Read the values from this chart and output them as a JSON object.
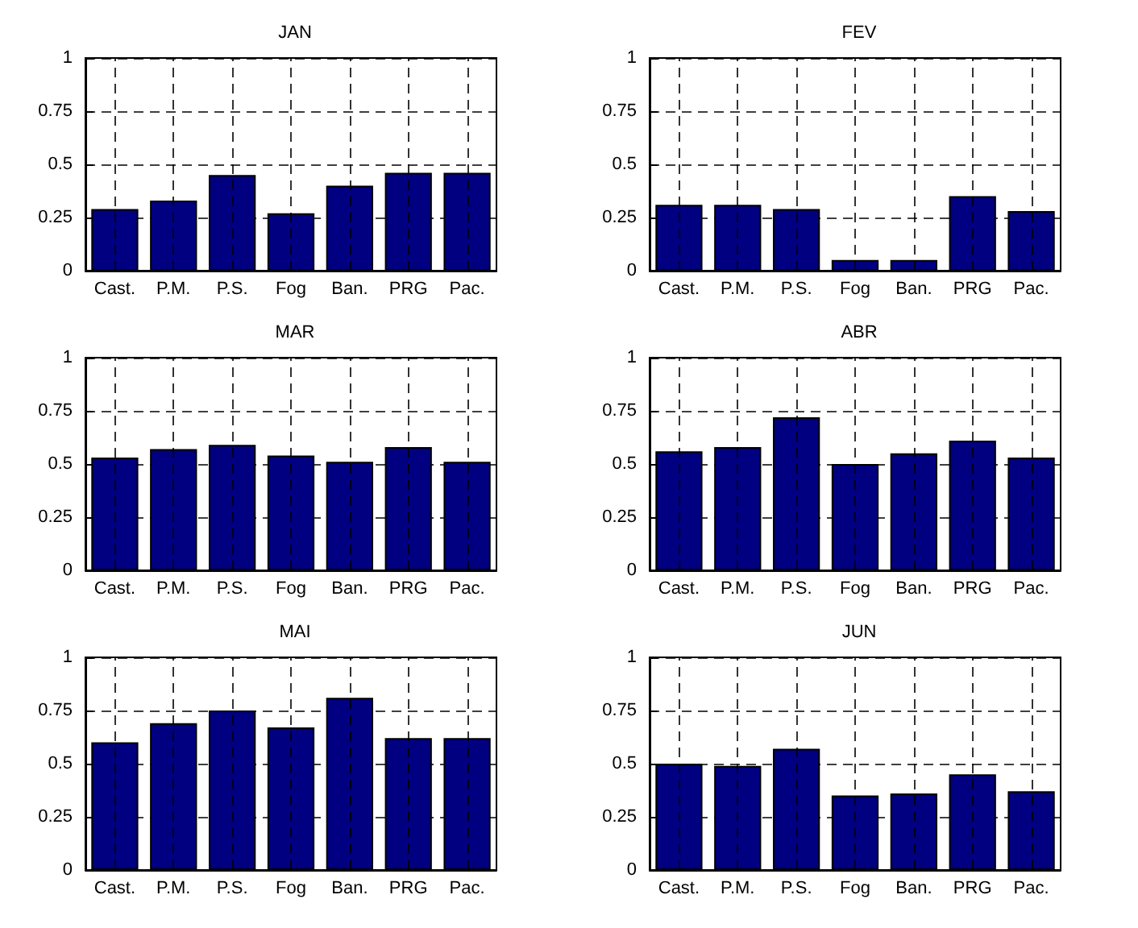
{
  "chart_data": [
    {
      "type": "bar",
      "title": "JAN",
      "categories": [
        "Cast.",
        "P.M.",
        "P.S.",
        "Fog",
        "Ban.",
        "PRG",
        "Pac."
      ],
      "values": [
        0.29,
        0.33,
        0.45,
        0.27,
        0.4,
        0.46,
        0.46
      ],
      "color": "#000080",
      "ylim": [
        0,
        1
      ],
      "yticks": [
        0,
        0.25,
        0.5,
        0.75,
        1
      ],
      "grid": true
    },
    {
      "type": "bar",
      "title": "FEV",
      "categories": [
        "Cast.",
        "P.M.",
        "P.S.",
        "Fog",
        "Ban.",
        "PRG",
        "Pac."
      ],
      "values": [
        0.31,
        0.31,
        0.29,
        0.05,
        0.05,
        0.35,
        0.28
      ],
      "color": "#000080",
      "ylim": [
        0,
        1
      ],
      "yticks": [
        0,
        0.25,
        0.5,
        0.75,
        1
      ],
      "grid": true
    },
    {
      "type": "bar",
      "title": "MAR",
      "categories": [
        "Cast.",
        "P.M.",
        "P.S.",
        "Fog",
        "Ban.",
        "PRG",
        "Pac."
      ],
      "values": [
        0.53,
        0.57,
        0.59,
        0.54,
        0.51,
        0.58,
        0.51
      ],
      "color": "#000080",
      "ylim": [
        0,
        1
      ],
      "yticks": [
        0,
        0.25,
        0.5,
        0.75,
        1
      ],
      "grid": true
    },
    {
      "type": "bar",
      "title": "ABR",
      "categories": [
        "Cast.",
        "P.M.",
        "P.S.",
        "Fog",
        "Ban.",
        "PRG",
        "Pac."
      ],
      "values": [
        0.56,
        0.58,
        0.72,
        0.5,
        0.55,
        0.61,
        0.53
      ],
      "color": "#000080",
      "ylim": [
        0,
        1
      ],
      "yticks": [
        0,
        0.25,
        0.5,
        0.75,
        1
      ],
      "grid": true
    },
    {
      "type": "bar",
      "title": "MAI",
      "categories": [
        "Cast.",
        "P.M.",
        "P.S.",
        "Fog",
        "Ban.",
        "PRG",
        "Pac."
      ],
      "values": [
        0.6,
        0.69,
        0.75,
        0.67,
        0.81,
        0.62,
        0.62
      ],
      "color": "#000080",
      "ylim": [
        0,
        1
      ],
      "yticks": [
        0,
        0.25,
        0.5,
        0.75,
        1
      ],
      "grid": true
    },
    {
      "type": "bar",
      "title": "JUN",
      "categories": [
        "Cast.",
        "P.M.",
        "P.S.",
        "Fog",
        "Ban.",
        "PRG",
        "Pac."
      ],
      "values": [
        0.5,
        0.49,
        0.57,
        0.35,
        0.36,
        0.45,
        0.37
      ],
      "color": "#000080",
      "ylim": [
        0,
        1
      ],
      "yticks": [
        0,
        0.25,
        0.5,
        0.75,
        1
      ],
      "grid": true
    }
  ]
}
